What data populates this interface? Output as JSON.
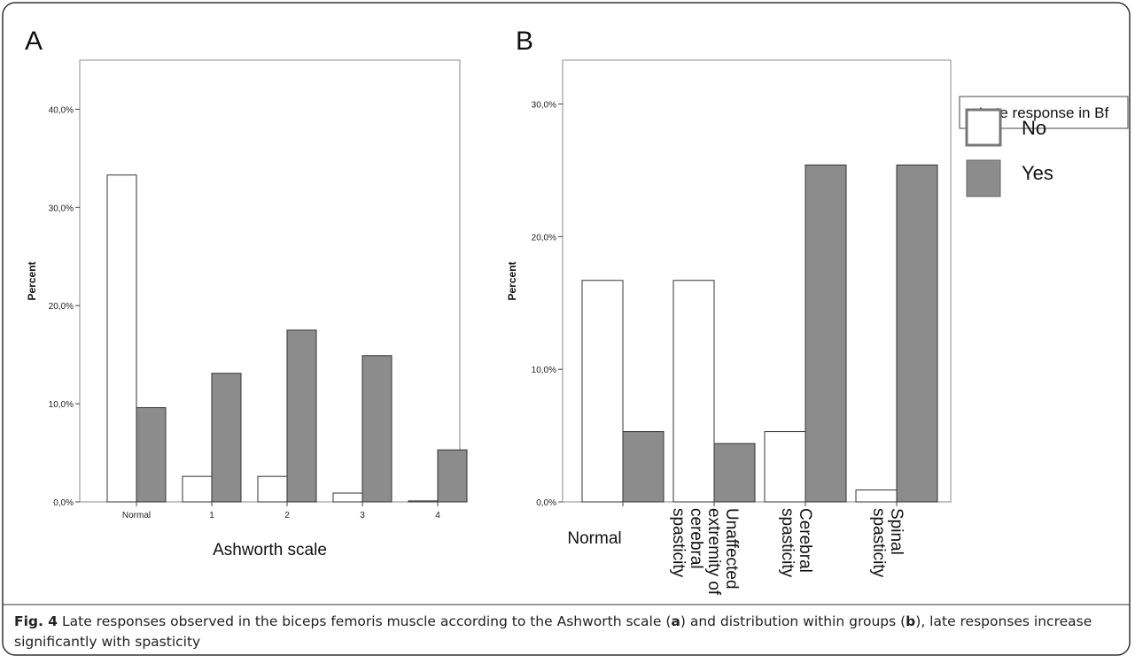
{
  "panel_letters": [
    "A",
    "B"
  ],
  "legend": {
    "title": "Late response in Bf",
    "items": [
      {
        "label": "No",
        "color": "#ffffff"
      },
      {
        "label": "Yes",
        "color": "#8c8c8c"
      }
    ]
  },
  "caption": {
    "fig_label": "Fig. 4",
    "text_1": " Late responses observed in the biceps femoris muscle according to the Ashworth scale (",
    "ref_a": "a",
    "text_2": ") and distribution within groups (",
    "ref_b": "b",
    "text_3": "), late responses increase significantly with spasticity"
  },
  "chart_data": [
    {
      "type": "bar",
      "panel": "A",
      "categories": [
        "Normal",
        "1",
        "2",
        "3",
        "4"
      ],
      "series": [
        {
          "name": "No",
          "values": [
            33.3,
            2.6,
            2.6,
            0.9,
            0.1
          ]
        },
        {
          "name": "Yes",
          "values": [
            9.6,
            13.1,
            17.5,
            14.9,
            5.3
          ]
        }
      ],
      "xlabel": "Ashworth scale",
      "ylabel": "Percent",
      "ylim": [
        0,
        45
      ],
      "yticks": [
        "0,0%",
        "10,0%",
        "20,0%",
        "30,0%",
        "40,0%"
      ],
      "ytick_values": [
        0,
        10,
        20,
        30,
        40
      ],
      "grid": false
    },
    {
      "type": "bar",
      "panel": "B",
      "categories": [
        "Normal",
        "Unaffected extremity of cerebral spasticity",
        "Cerebral spasticity",
        "Spinal spasticity"
      ],
      "category_lines": [
        [
          "Normal"
        ],
        [
          "Unaffected",
          "extremity of",
          "cerebral",
          "spasticity"
        ],
        [
          "Cerebral",
          "spasticity"
        ],
        [
          "Spinal",
          "spasticity"
        ]
      ],
      "series": [
        {
          "name": "No",
          "values": [
            16.7,
            16.7,
            5.3,
            0.9
          ]
        },
        {
          "name": "Yes",
          "values": [
            5.3,
            4.4,
            25.4,
            25.4
          ]
        }
      ],
      "ylabel": "Percent",
      "ylim": [
        0,
        33.3
      ],
      "yticks": [
        "0,0%",
        "10,0%",
        "20,0%",
        "30,0%"
      ],
      "ytick_values": [
        0,
        10,
        20,
        30
      ],
      "grid": false
    }
  ]
}
